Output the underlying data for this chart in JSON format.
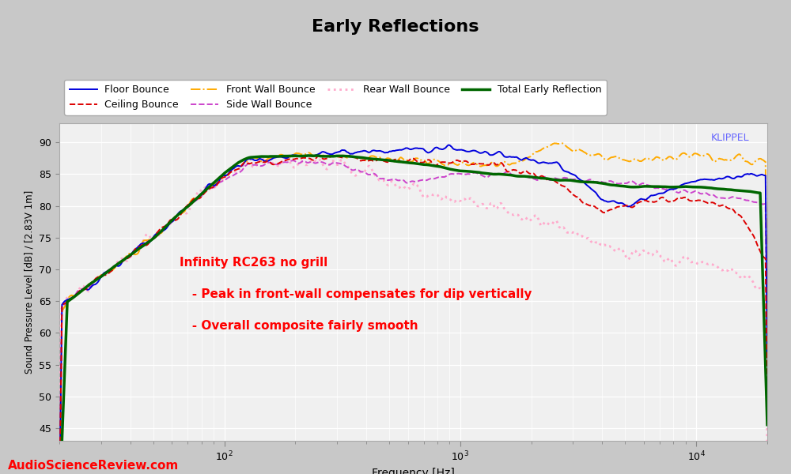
{
  "title": "Early Reflections",
  "xlabel": "Frequency [Hz]",
  "ylabel": "Sound Pressure Level [dB] / [2.83V 1m]",
  "xlim": [
    20,
    20000
  ],
  "ylim": [
    43,
    93
  ],
  "yticks": [
    45,
    50,
    55,
    60,
    65,
    70,
    75,
    80,
    85,
    90
  ],
  "fig_bg_color": "#c8c8c8",
  "plot_bg_color": "#f0f0f0",
  "grid_color": "white",
  "annotation_line1": "Infinity RC263 no grill",
  "annotation_line2": "   - Peak in front-wall compensates for dip vertically",
  "annotation_line3": "   - Overall composite fairly smooth",
  "annotation_color": "red",
  "klippel_text": "KLIPPEL",
  "klippel_color": "#6666ff",
  "asr_text": "AudioScienceReview.com",
  "asr_color": "red",
  "series": [
    {
      "name": "Floor Bounce",
      "color": "#0000dd",
      "linestyle": "solid",
      "linewidth": 1.4,
      "zorder": 5
    },
    {
      "name": "Ceiling Bounce",
      "color": "#dd0000",
      "linestyle": "dashed",
      "linewidth": 1.4,
      "zorder": 5
    },
    {
      "name": "Front Wall Bounce",
      "color": "#ffaa00",
      "linestyle": "dashdot",
      "linewidth": 1.4,
      "zorder": 4
    },
    {
      "name": "Side Wall Bounce",
      "color": "#cc44cc",
      "linestyle": "dashed",
      "linewidth": 1.4,
      "zorder": 4
    },
    {
      "name": "Rear Wall Bounce",
      "color": "#ffaacc",
      "linestyle": "dotted",
      "linewidth": 2.0,
      "zorder": 3
    },
    {
      "name": "Total Early Reflection",
      "color": "#006600",
      "linestyle": "solid",
      "linewidth": 2.5,
      "zorder": 6
    }
  ]
}
